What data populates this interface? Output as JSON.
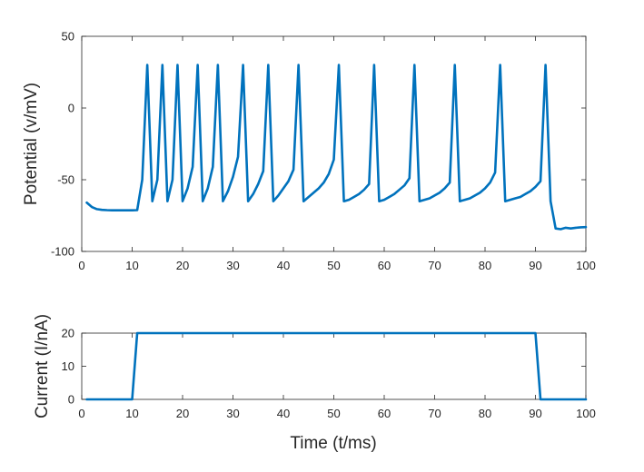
{
  "colors": {
    "series": "#0072BD",
    "axis": "#262626"
  },
  "chart_data": [
    {
      "type": "line",
      "xlabel": "",
      "ylabel": "Potential (v/mV)",
      "xlim": [
        0,
        100
      ],
      "ylim": [
        -100,
        50
      ],
      "xticks": [
        0,
        10,
        20,
        30,
        40,
        50,
        60,
        70,
        80,
        90,
        100
      ],
      "yticks": [
        -100,
        -50,
        0,
        50
      ],
      "xtick_labels": [
        "0",
        "10",
        "20",
        "30",
        "40",
        "50",
        "60",
        "70",
        "80",
        "90",
        "100"
      ],
      "ytick_labels": [
        "-100",
        "-50",
        "0",
        "50"
      ],
      "grid": false,
      "series": [
        {
          "x": [
            1,
            2,
            3,
            4,
            5,
            6,
            7,
            8,
            9,
            10,
            11,
            12,
            13,
            14,
            15,
            16,
            17,
            18,
            19,
            20,
            21,
            22,
            23,
            24,
            25,
            26,
            27,
            28,
            29,
            30,
            31,
            32,
            33,
            34,
            35,
            36,
            37,
            38,
            39,
            40,
            41,
            42,
            43,
            44,
            45,
            46,
            47,
            48,
            49,
            50,
            51,
            52,
            53,
            54,
            55,
            56,
            57,
            58,
            59,
            60,
            61,
            62,
            63,
            64,
            65,
            66,
            67,
            68,
            69,
            70,
            71,
            72,
            73,
            74,
            75,
            76,
            77,
            78,
            79,
            80,
            81,
            82,
            83,
            84,
            85,
            86,
            87,
            88,
            89,
            90,
            91,
            92,
            93,
            94,
            95,
            96,
            97,
            98,
            99,
            100
          ],
          "y": [
            -66,
            -69,
            -70.5,
            -71,
            -71.2,
            -71.3,
            -71.3,
            -71.3,
            -71.3,
            -71.3,
            -71.2,
            -50,
            30,
            -65,
            -50,
            30,
            -65,
            -50,
            30,
            -65,
            -56,
            -41,
            30,
            -65,
            -56,
            -41,
            30,
            -65,
            -58,
            -48,
            -34,
            30,
            -65,
            -60,
            -53,
            -44,
            30,
            -65,
            -61,
            -56,
            -51,
            -43,
            30,
            -65,
            -62,
            -59,
            -56,
            -52,
            -46,
            -36,
            30,
            -65,
            -64,
            -62,
            -60,
            -57,
            -53,
            30,
            -65,
            -64,
            -62,
            -60,
            -57,
            -54,
            -49,
            30,
            -65,
            -64,
            -63,
            -61,
            -59,
            -56,
            -52,
            30,
            -65,
            -64,
            -63,
            -61,
            -59,
            -56,
            -52,
            -45,
            30,
            -65,
            -64,
            -63,
            -62,
            -60,
            -58,
            -55,
            -51,
            30,
            -65,
            -84,
            -84.5,
            -83.5,
            -84,
            -83.5,
            -83.2,
            -83
          ]
        }
      ]
    },
    {
      "type": "line",
      "xlabel": "Time (t/ms)",
      "ylabel": "Current (I/nA)",
      "xlim": [
        0,
        100
      ],
      "ylim": [
        0,
        20
      ],
      "xticks": [
        0,
        10,
        20,
        30,
        40,
        50,
        60,
        70,
        80,
        90,
        100
      ],
      "yticks": [
        0,
        10,
        20
      ],
      "xtick_labels": [
        "0",
        "10",
        "20",
        "30",
        "40",
        "50",
        "60",
        "70",
        "80",
        "90",
        "100"
      ],
      "ytick_labels": [
        "0",
        "10",
        "20"
      ],
      "grid": false,
      "series": [
        {
          "x": [
            1,
            10,
            11,
            90,
            91,
            100
          ],
          "y": [
            0,
            0,
            20,
            20,
            0,
            0
          ]
        }
      ]
    }
  ]
}
